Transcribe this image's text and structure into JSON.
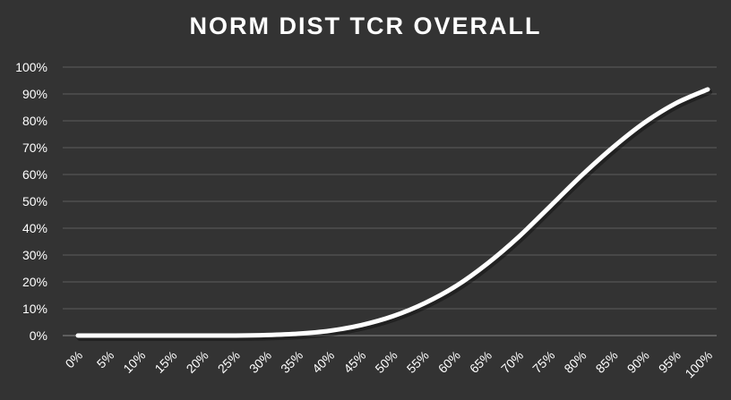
{
  "chart_data": {
    "type": "line",
    "title": "NORM DIST TCR OVERALL",
    "xlabel": "",
    "ylabel": "",
    "x": [
      "0%",
      "5%",
      "10%",
      "15%",
      "20%",
      "25%",
      "30%",
      "35%",
      "40%",
      "45%",
      "50%",
      "55%",
      "60%",
      "65%",
      "70%",
      "75%",
      "80%",
      "85%",
      "90%",
      "95%",
      "100%"
    ],
    "series": [
      {
        "values": [
          0,
          0,
          0,
          0,
          0,
          0,
          0.2,
          0.7,
          1.8,
          3.9,
          7.2,
          12,
          18.4,
          26.8,
          36.8,
          48.2,
          59.7,
          70.2,
          79.4,
          86.6,
          91.7
        ]
      }
    ],
    "ylim": [
      0,
      100
    ],
    "yticks": [
      "0%",
      "10%",
      "20%",
      "30%",
      "40%",
      "50%",
      "60%",
      "70%",
      "80%",
      "90%",
      "100%"
    ],
    "grid": true,
    "drop_lines": true,
    "legend": "none",
    "colors": {
      "background": "#333333",
      "line": "#ffffff",
      "grid": "#5c5c5c",
      "text": "#ffffff"
    }
  }
}
